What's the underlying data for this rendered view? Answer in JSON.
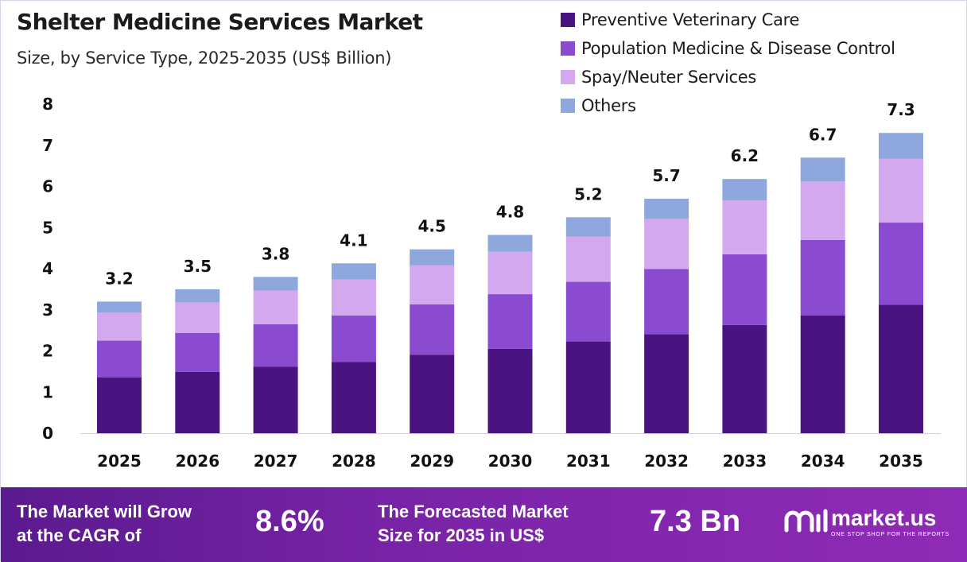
{
  "header": {
    "title": "Shelter Medicine Services Market",
    "subtitle": "Size, by Service Type, 2025-2035 (US$ Billion)"
  },
  "legend": [
    {
      "label": "Preventive Veterinary Care",
      "color": "#4a1480"
    },
    {
      "label": "Population Medicine & Disease Control",
      "color": "#8a4bd0"
    },
    {
      "label": "Spay/Neuter Services",
      "color": "#d4a8ee"
    },
    {
      "label": "Others",
      "color": "#8ea8de"
    }
  ],
  "chart_data": {
    "type": "bar",
    "stacked": true,
    "categories": [
      "2025",
      "2026",
      "2027",
      "2028",
      "2029",
      "2030",
      "2031",
      "2032",
      "2033",
      "2034",
      "2035"
    ],
    "series": [
      {
        "name": "Preventive Veterinary Care",
        "values": [
          1.36,
          1.49,
          1.62,
          1.73,
          1.91,
          2.05,
          2.23,
          2.41,
          2.63,
          2.86,
          3.12
        ]
      },
      {
        "name": "Population Medicine & Disease Control",
        "values": [
          0.89,
          0.95,
          1.03,
          1.13,
          1.22,
          1.33,
          1.45,
          1.58,
          1.72,
          1.84,
          2.0
        ]
      },
      {
        "name": "Spay/Neuter Services",
        "values": [
          0.68,
          0.74,
          0.82,
          0.88,
          0.95,
          1.03,
          1.1,
          1.22,
          1.31,
          1.42,
          1.55
        ]
      },
      {
        "name": "Others",
        "values": [
          0.27,
          0.32,
          0.33,
          0.39,
          0.39,
          0.41,
          0.47,
          0.49,
          0.52,
          0.58,
          0.63
        ]
      }
    ],
    "totals": [
      "3.2",
      "3.5",
      "3.8",
      "4.1",
      "4.5",
      "4.8",
      "5.2",
      "5.7",
      "6.2",
      "6.7",
      "7.3"
    ],
    "yticks": [
      "0",
      "1",
      "2",
      "3",
      "4",
      "5",
      "6",
      "7",
      "8"
    ],
    "ylim": [
      0,
      8
    ],
    "title": "Shelter Medicine Services Market",
    "xlabel": "",
    "ylabel": "",
    "grid": false,
    "legend_position": "top-right"
  },
  "footer": {
    "cagr_text_1": "The Market will Grow",
    "cagr_text_2": "at the CAGR of",
    "cagr_value": "8.6%",
    "forecast_text_1": "The Forecasted Market",
    "forecast_text_2": "Size for 2035 in US$",
    "forecast_value": "7.3 Bn",
    "brand_name": "market.us",
    "brand_tagline": "ONE STOP SHOP FOR THE REPORTS"
  }
}
